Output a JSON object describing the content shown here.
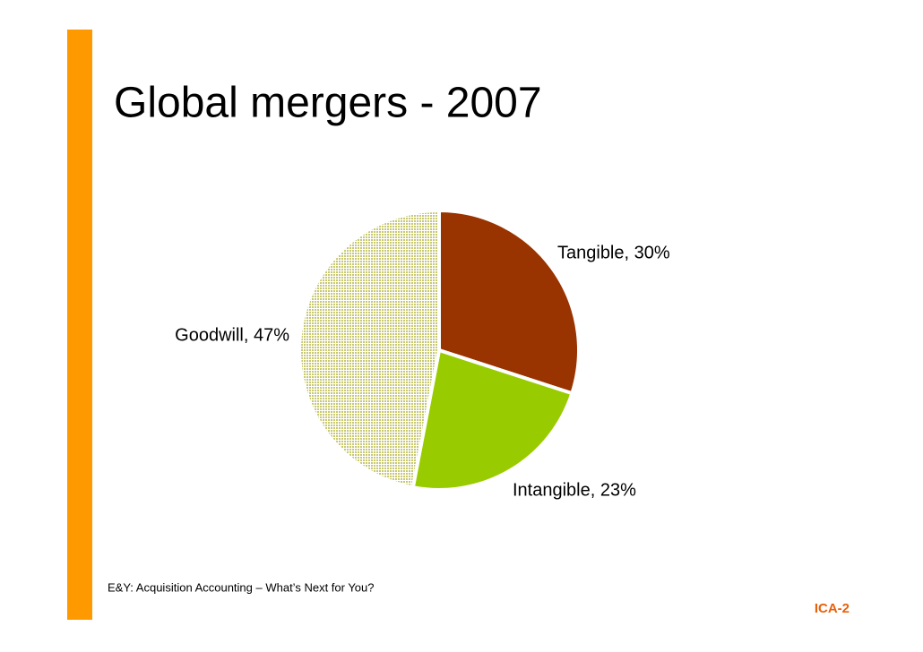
{
  "chart_data": {
    "type": "pie",
    "title": "Global mergers - 2007",
    "values": [
      30,
      23,
      47
    ],
    "value_labels": [
      "Tangible, 30%",
      "Intangible, 23%",
      "Goodwill, 47%"
    ],
    "colors": [
      "#993300",
      "#99cc00",
      "#c8c870"
    ]
  },
  "footer": "E&Y: Acquisition Accounting – What’s Next for You?",
  "page_number": "ICA-2"
}
